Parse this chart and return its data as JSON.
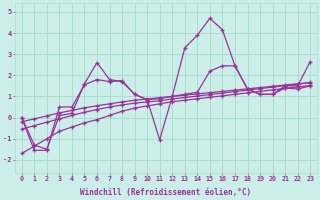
{
  "xlabel": "Windchill (Refroidissement éolien,°C)",
  "bg_color": "#cceee8",
  "grid_color": "#aaddcc",
  "line_color": "#993399",
  "xlim": [
    -0.5,
    23.5
  ],
  "ylim": [
    -2.6,
    5.4
  ],
  "xticks": [
    0,
    1,
    2,
    3,
    4,
    5,
    6,
    7,
    8,
    9,
    10,
    11,
    12,
    13,
    14,
    15,
    16,
    17,
    18,
    19,
    20,
    21,
    22,
    23
  ],
  "yticks": [
    -2,
    -1,
    0,
    1,
    2,
    3,
    4,
    5
  ],
  "series_main": [
    0.0,
    -1.3,
    -1.5,
    0.1,
    0.2,
    1.6,
    2.6,
    1.8,
    1.7,
    1.1,
    0.85,
    -1.05,
    1.0,
    3.3,
    3.9,
    4.7,
    4.15,
    2.45,
    1.35,
    1.1,
    1.1,
    1.5,
    1.5,
    2.65
  ],
  "series2": [
    0.0,
    -1.55,
    -1.55,
    0.5,
    0.5,
    1.55,
    1.8,
    1.7,
    1.75,
    1.1,
    0.85,
    0.9,
    1.0,
    1.1,
    1.2,
    2.2,
    2.45,
    2.45,
    1.35,
    1.1,
    1.1,
    1.4,
    1.35,
    1.5
  ],
  "trend_low": [
    -1.7,
    -1.35,
    -1.0,
    -0.65,
    -0.45,
    -0.25,
    -0.1,
    0.1,
    0.3,
    0.45,
    0.55,
    0.65,
    0.75,
    0.82,
    0.89,
    0.96,
    1.03,
    1.1,
    1.17,
    1.24,
    1.31,
    1.38,
    1.45,
    1.52
  ],
  "trend_mid": [
    -0.55,
    -0.38,
    -0.22,
    -0.06,
    0.1,
    0.25,
    0.38,
    0.5,
    0.6,
    0.68,
    0.74,
    0.8,
    0.88,
    0.95,
    1.02,
    1.09,
    1.16,
    1.23,
    1.3,
    1.37,
    1.44,
    1.51,
    1.58,
    1.65
  ],
  "trend_high": [
    -0.2,
    -0.06,
    0.08,
    0.22,
    0.34,
    0.46,
    0.56,
    0.65,
    0.74,
    0.82,
    0.88,
    0.94,
    1.0,
    1.06,
    1.12,
    1.18,
    1.24,
    1.3,
    1.36,
    1.42,
    1.48,
    1.54,
    1.6,
    1.66
  ]
}
